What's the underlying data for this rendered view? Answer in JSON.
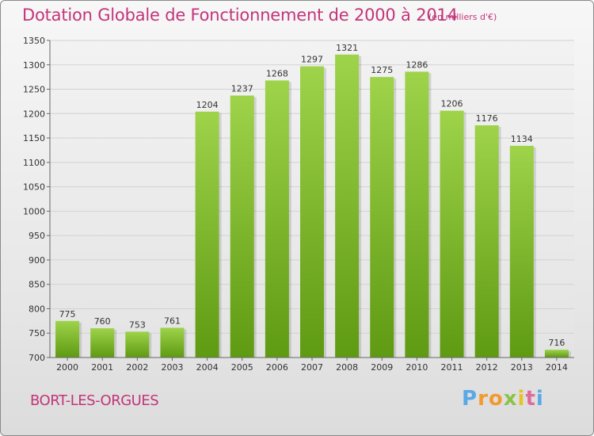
{
  "header": {
    "title": "Dotation Globale de Fonctionnement de 2000 à 2014",
    "unit": "(en milliers d'€)"
  },
  "footer": {
    "commune": "BORT-LES-ORGUES",
    "logo_text": "Proxiti"
  },
  "colors": {
    "bar_top": "#9ed34a",
    "bar_bottom": "#5e9a12",
    "title": "#c2357a"
  },
  "chart_data": {
    "type": "bar",
    "title": "Dotation Globale de Fonctionnement de 2000 à 2014",
    "subtitle": "(en milliers d'€)",
    "xlabel": "",
    "ylabel": "",
    "categories": [
      "2000",
      "2001",
      "2002",
      "2003",
      "2004",
      "2005",
      "2006",
      "2007",
      "2008",
      "2009",
      "2010",
      "2011",
      "2012",
      "2013",
      "2014"
    ],
    "values": [
      775,
      760,
      753,
      761,
      1204,
      1237,
      1268,
      1297,
      1321,
      1275,
      1286,
      1206,
      1176,
      1134,
      716
    ],
    "ylim": [
      700,
      1350
    ],
    "yticks": [
      700,
      750,
      800,
      850,
      900,
      950,
      1000,
      1050,
      1100,
      1150,
      1200,
      1250,
      1300,
      1350
    ],
    "grid": true,
    "data_labels": true
  }
}
